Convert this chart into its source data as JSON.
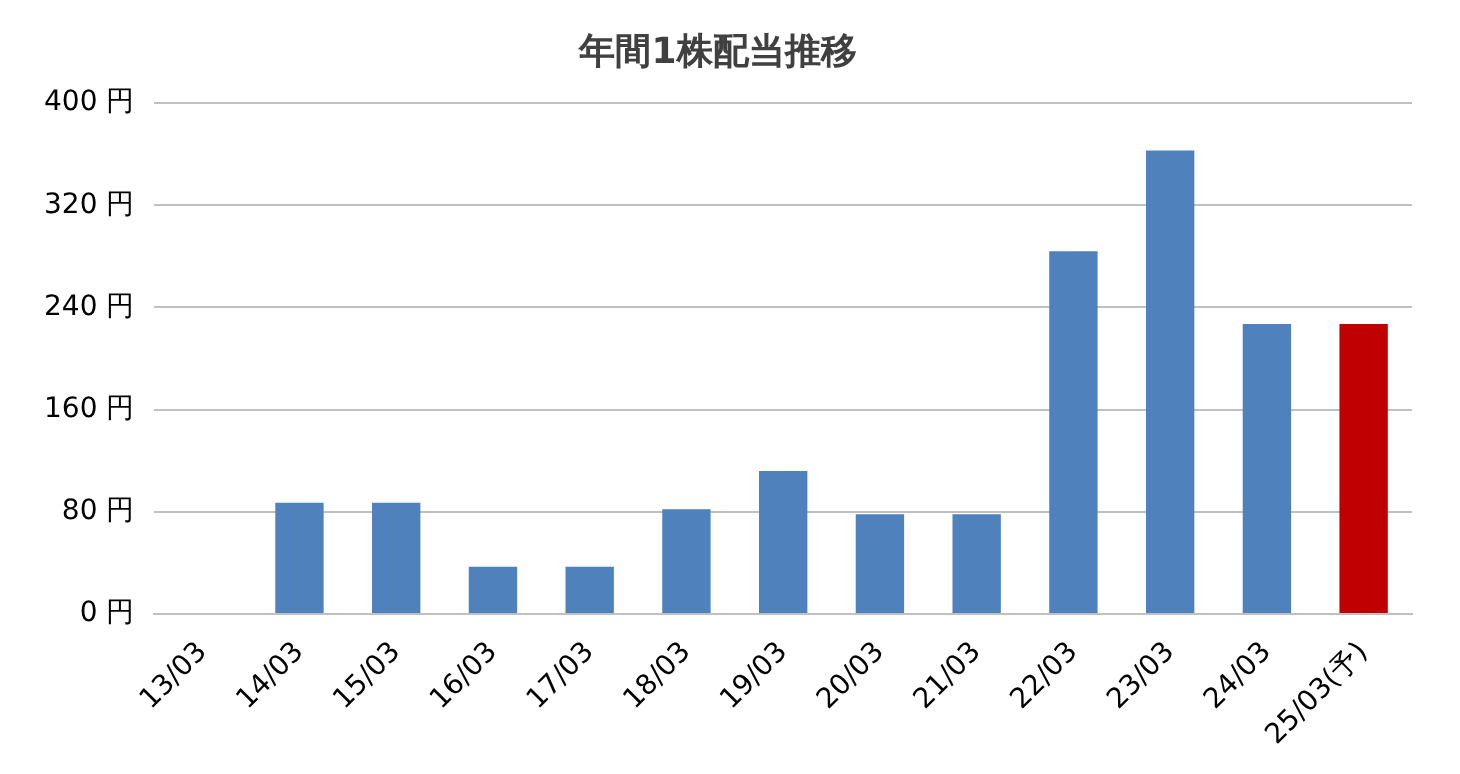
{
  "chart_data": {
    "type": "bar",
    "title": "年間1株配当推移",
    "categories": [
      "13/03",
      "14/03",
      "15/03",
      "16/03",
      "17/03",
      "18/03",
      "19/03",
      "20/03",
      "21/03",
      "22/03",
      "23/03",
      "24/03",
      "25/03(予)"
    ],
    "values": [
      0,
      87,
      87,
      37,
      37,
      82,
      112,
      78,
      78,
      284,
      363,
      227,
      227
    ],
    "colors": [
      "#4f81bd",
      "#4f81bd",
      "#4f81bd",
      "#4f81bd",
      "#4f81bd",
      "#4f81bd",
      "#4f81bd",
      "#4f81bd",
      "#4f81bd",
      "#4f81bd",
      "#4f81bd",
      "#4f81bd",
      "#c00000"
    ],
    "ylim": [
      0,
      400
    ],
    "yticks": [
      {
        "value": 0,
        "label": "0 円"
      },
      {
        "value": 80,
        "label": "80 円"
      },
      {
        "value": 160,
        "label": "160 円"
      },
      {
        "value": 240,
        "label": "240 円"
      },
      {
        "value": 320,
        "label": "320 円"
      },
      {
        "value": 400,
        "label": "400 円"
      }
    ],
    "grid": "y",
    "legend": false
  }
}
